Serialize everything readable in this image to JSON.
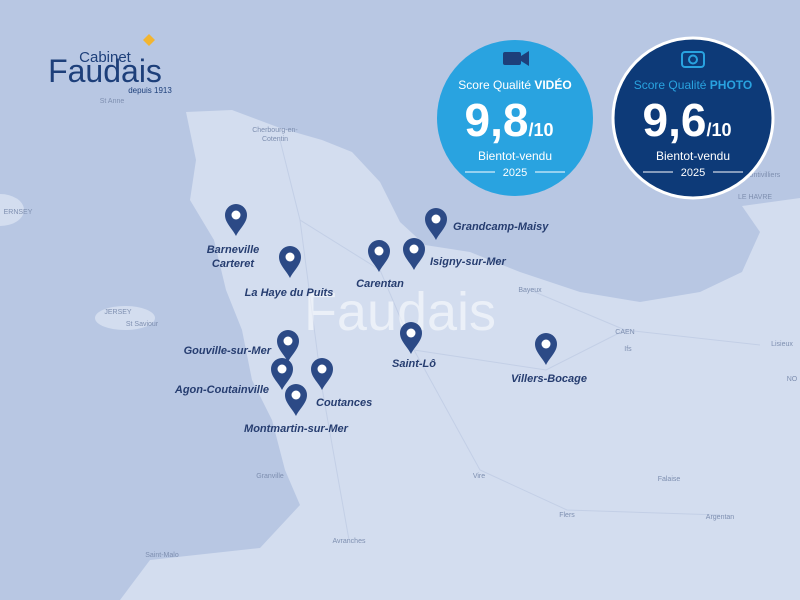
{
  "logo": {
    "line1": "Cabinet",
    "name": "Faudais",
    "since": "depuis 1913"
  },
  "scores": [
    {
      "label": "Score Qualité",
      "kind": "VIDÉO",
      "score": "9,8",
      "scale": "/10",
      "brand": "Bientot-vendu",
      "year": "2025"
    },
    {
      "label": "Score Qualité",
      "kind": "PHOTO",
      "score": "9,6",
      "scale": "/10",
      "brand": "Bientot-vendu",
      "year": "2025"
    }
  ],
  "places": [
    {
      "lines": [
        "Grandcamp-Maisy"
      ]
    },
    {
      "lines": [
        "Barneville",
        "Carteret"
      ]
    },
    {
      "lines": [
        "La Haye du Puits"
      ]
    },
    {
      "lines": [
        "Carentan"
      ]
    },
    {
      "lines": [
        "Isigny-sur-Mer"
      ]
    },
    {
      "lines": [
        "Gouville-sur-Mer"
      ]
    },
    {
      "lines": [
        "Agon-Coutainville"
      ]
    },
    {
      "lines": [
        "Coutances"
      ]
    },
    {
      "lines": [
        "Montmartin-sur-Mer"
      ]
    },
    {
      "lines": [
        "Saint-Lô"
      ]
    },
    {
      "lines": [
        "Villers-Bocage"
      ]
    }
  ],
  "map_labels": [
    "St Anne",
    "Cherbourg-en-",
    "Cotentin",
    "ERNSEY",
    "JERSEY",
    "St Saviour",
    "Bayeux",
    "CAEN",
    "Ifs",
    "Montivilliers",
    "LE HAVRE",
    "Lisieux",
    "NO",
    "Falaise",
    "Vire",
    "Flers",
    "Argentan",
    "Granville",
    "Avranches",
    "Saint-Malo"
  ],
  "watermark": "Faudais"
}
